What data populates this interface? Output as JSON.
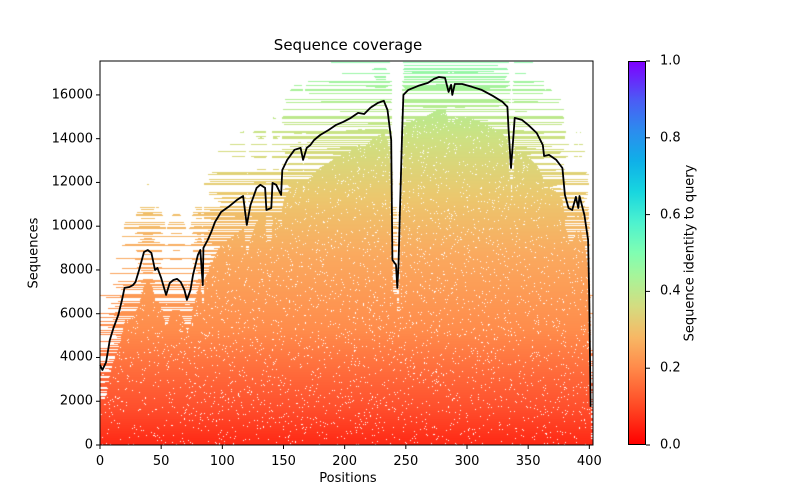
{
  "chart_data": {
    "type": "heatmap",
    "title": "Sequence coverage",
    "xlabel": "Positions",
    "ylabel": "Sequences",
    "xlim": [
      0,
      403
    ],
    "ylim": [
      0,
      17550
    ],
    "xticks": [
      "0",
      "50",
      "100",
      "150",
      "200",
      "250",
      "300",
      "350",
      "400"
    ],
    "xtick_values": [
      0,
      50,
      100,
      150,
      200,
      250,
      300,
      350,
      400
    ],
    "yticks": [
      "0",
      "2000",
      "4000",
      "6000",
      "8000",
      "10000",
      "12000",
      "14000",
      "16000"
    ],
    "ytick_values": [
      0,
      2000,
      4000,
      6000,
      8000,
      10000,
      12000,
      14000,
      16000
    ],
    "grid": false,
    "colorbar": {
      "label": "Sequence identity to query",
      "colormap": "rainbow_r",
      "range": [
        0.0,
        1.0
      ],
      "ticks": [
        "0.0",
        "0.2",
        "0.4",
        "0.6",
        "0.8",
        "1.0"
      ],
      "tick_values": [
        0.0,
        0.2,
        0.4,
        0.6,
        0.8,
        1.0
      ]
    },
    "heatmap_description": "Aligned sequences sorted by identity (low identity at bottom in red/orange, ~0.45 identity at top in green); white where a sequence has no coverage",
    "series": [
      {
        "name": "coverage",
        "color": "#000000",
        "x": [
          0,
          2,
          5,
          8,
          11,
          15,
          18,
          20,
          24,
          27,
          29,
          32,
          36,
          39,
          42,
          45,
          47,
          50,
          54,
          57,
          60,
          63,
          66,
          69,
          71,
          74,
          76,
          80,
          82,
          84,
          84.5,
          88,
          91,
          94,
          99,
          105,
          112,
          117,
          120,
          123,
          128,
          131,
          135,
          136,
          140,
          141,
          144,
          148,
          149,
          153,
          159,
          164,
          166,
          169,
          172,
          175,
          180,
          187,
          193,
          199,
          205,
          211,
          216,
          221,
          227,
          232,
          235,
          238,
          239,
          242,
          243,
          244,
          245,
          247,
          248,
          252,
          260,
          268,
          273,
          277,
          282,
          285,
          287,
          288,
          290,
          296,
          304,
          312,
          321,
          329,
          333,
          334,
          336,
          338,
          339,
          345,
          350,
          357,
          362,
          363,
          367,
          373,
          378,
          380,
          383,
          386,
          389,
          391,
          392,
          396,
          399,
          400,
          401
        ],
        "y": [
          3660,
          3430,
          3790,
          4800,
          5350,
          5940,
          6630,
          7180,
          7220,
          7310,
          7450,
          8000,
          8820,
          8910,
          8780,
          8000,
          8090,
          7630,
          6860,
          7400,
          7540,
          7590,
          7450,
          7090,
          6630,
          7090,
          7770,
          8690,
          8910,
          7310,
          9010,
          9370,
          9740,
          10190,
          10650,
          10880,
          11200,
          11380,
          10060,
          10970,
          11750,
          11890,
          11750,
          10740,
          10830,
          11980,
          11890,
          11430,
          12570,
          13030,
          13490,
          13580,
          13030,
          13580,
          13710,
          13940,
          14170,
          14400,
          14630,
          14770,
          14950,
          15180,
          15130,
          15410,
          15630,
          15730,
          15310,
          13940,
          8460,
          8230,
          7180,
          8230,
          10290,
          14400,
          16000,
          16230,
          16410,
          16550,
          16730,
          16820,
          16780,
          16140,
          16460,
          16000,
          16500,
          16500,
          16370,
          16230,
          15960,
          15680,
          15450,
          14400,
          12660,
          14170,
          14950,
          14860,
          14630,
          14260,
          13710,
          13210,
          13260,
          13030,
          12660,
          11430,
          10830,
          10740,
          11340,
          10830,
          11380,
          10510,
          9370,
          6630,
          1740
        ]
      }
    ]
  }
}
